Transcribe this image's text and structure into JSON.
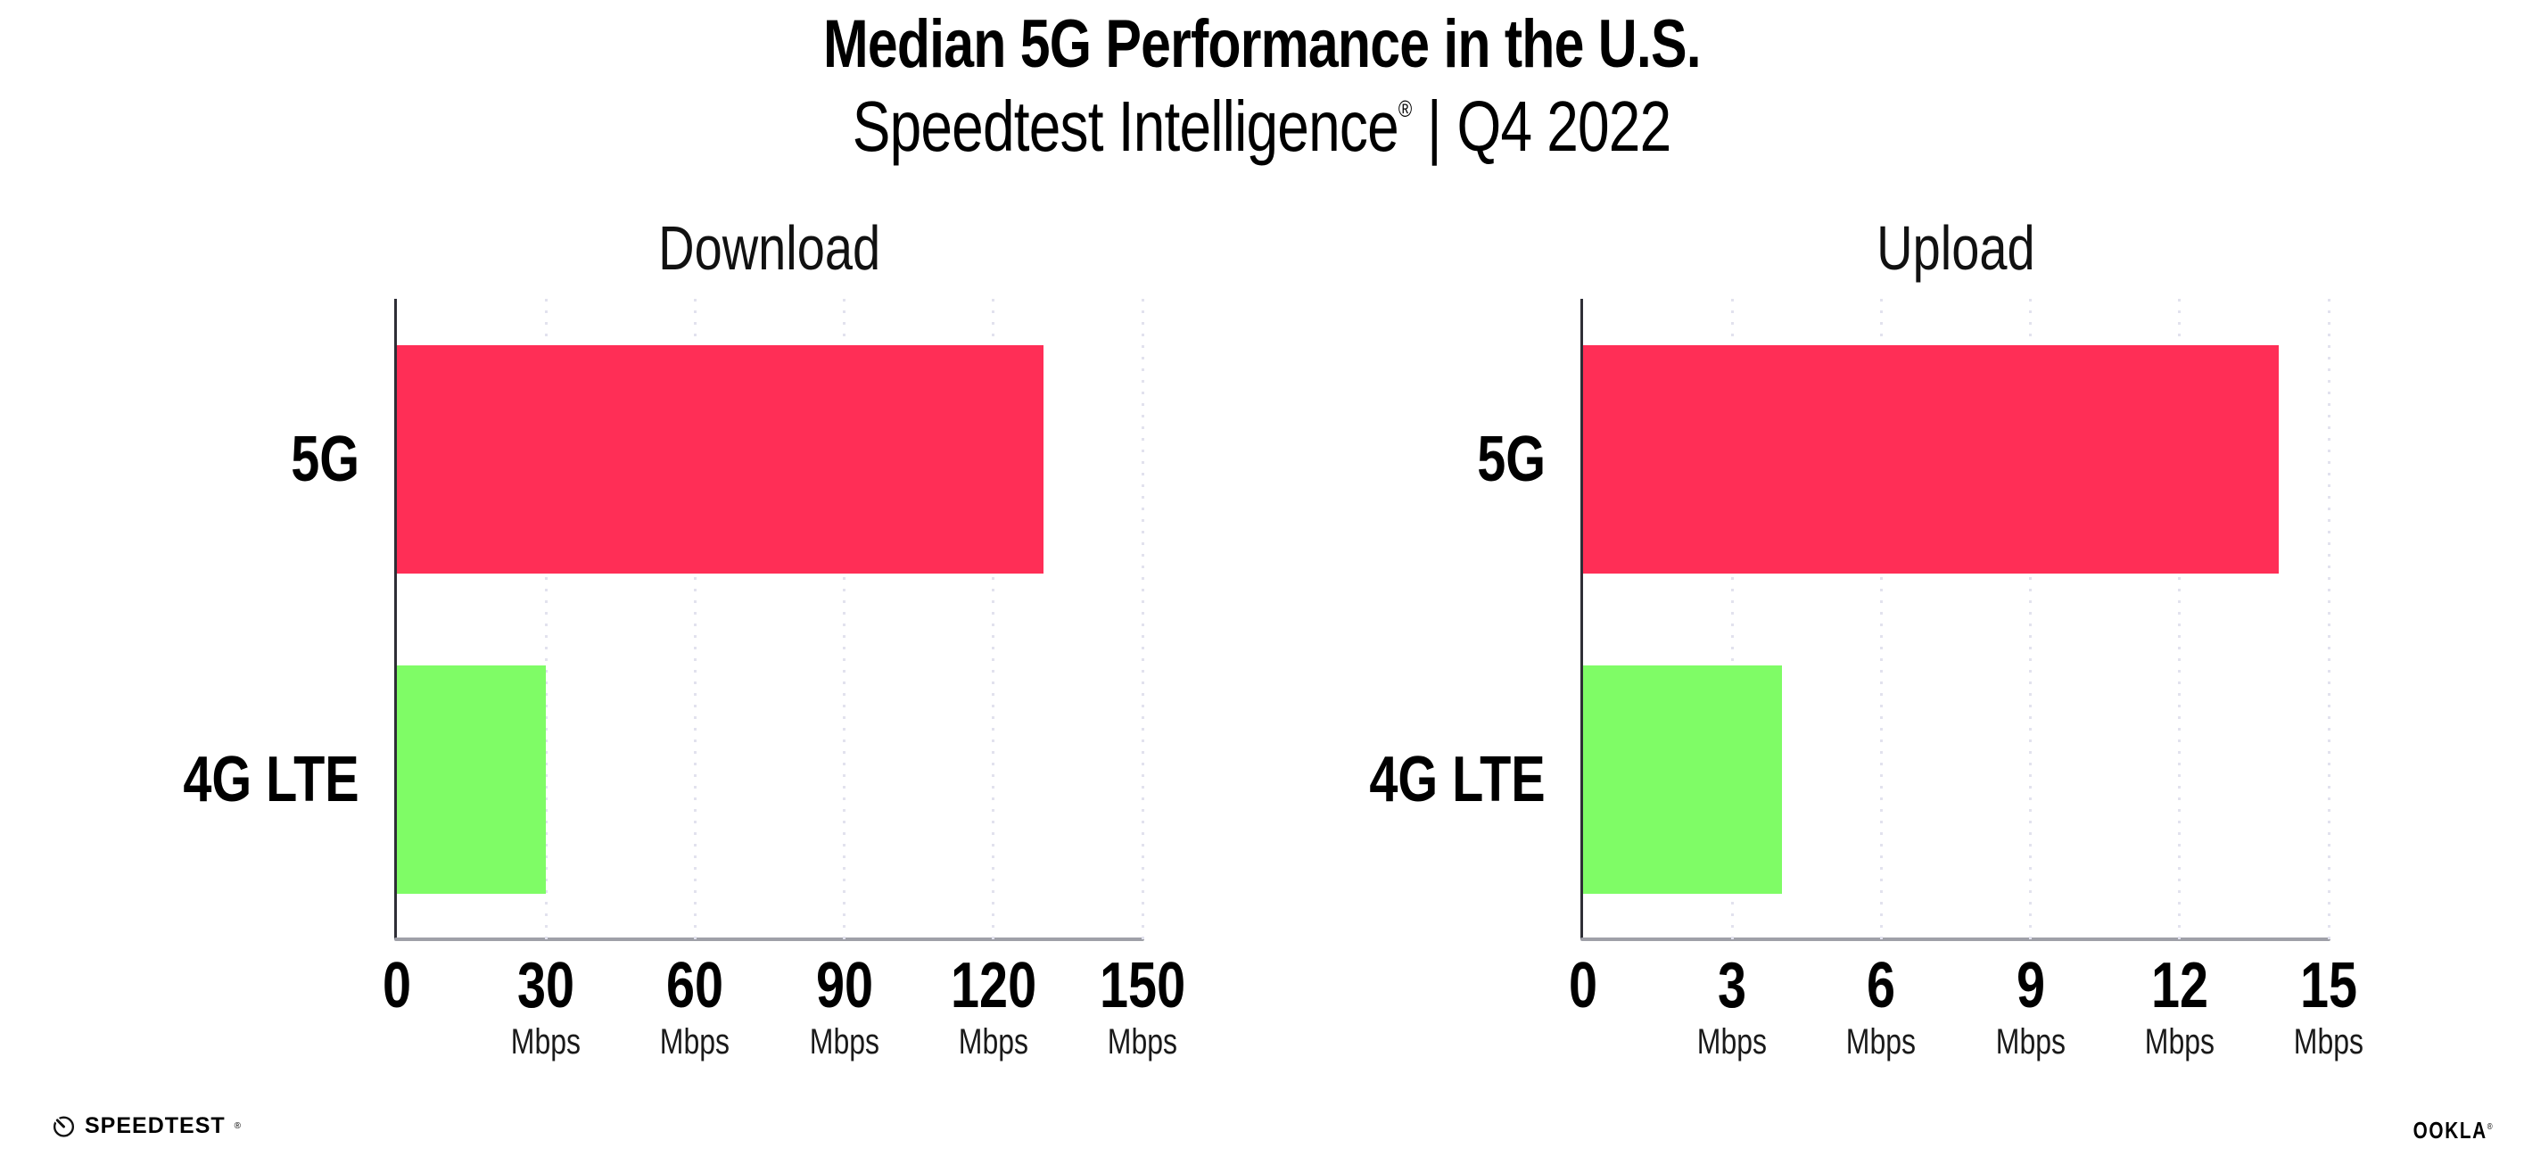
{
  "page": {
    "title": "Median 5G Performance in the U.S.",
    "subtitle": {
      "brand": "Speedtest Intelligence",
      "reg": "®",
      "separator": "|",
      "period": "Q4 2022"
    }
  },
  "chart_data": [
    {
      "type": "bar",
      "orientation": "horizontal",
      "title": "Download",
      "categories": [
        "5G",
        "4G LTE"
      ],
      "values": [
        130,
        30
      ],
      "unit": "Mbps",
      "xlim": [
        0,
        150
      ],
      "xticks": [
        0,
        30,
        60,
        90,
        120,
        150
      ],
      "bar_colors": [
        "#FF2E56",
        "#7FFC66"
      ],
      "grid": "dotted-vertical",
      "legend": "none"
    },
    {
      "type": "bar",
      "orientation": "horizontal",
      "title": "Upload",
      "categories": [
        "5G",
        "4G LTE"
      ],
      "values": [
        14,
        4
      ],
      "unit": "Mbps",
      "xlim": [
        0,
        15
      ],
      "xticks": [
        0,
        3,
        6,
        9,
        12,
        15
      ],
      "bar_colors": [
        "#FF2E56",
        "#7FFC66"
      ],
      "grid": "dotted-vertical",
      "legend": "none"
    }
  ],
  "footer": {
    "speedtest_label": "SPEEDTEST",
    "speedtest_reg": "®",
    "speedtest_icon": "speedtest-gauge-icon",
    "ookla_label": "OOKLA",
    "ookla_reg": "®"
  },
  "colors": {
    "bar_5g": "#FF2E56",
    "bar_4g_lte": "#7FFC66",
    "gridline": "#E2E2EE",
    "axis_y": "#2E2E36",
    "axis_x": "#9FA0A8",
    "text": "#000000",
    "background": "#FFFFFF"
  }
}
